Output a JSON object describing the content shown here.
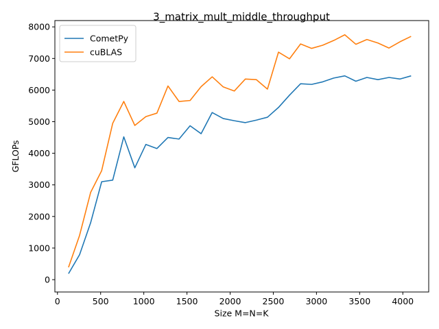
{
  "chart_data": {
    "type": "line",
    "title": "3_matrix_mult_middle_throughput",
    "xlabel": "Size M=N=K",
    "ylabel": "GFLOPs",
    "xlim": [
      -30,
      4300
    ],
    "ylim": [
      -390,
      8200
    ],
    "xticks": [
      0,
      500,
      1000,
      1500,
      2000,
      2500,
      3000,
      3500,
      4000
    ],
    "yticks": [
      0,
      1000,
      2000,
      3000,
      4000,
      5000,
      6000,
      7000,
      8000
    ],
    "grid": false,
    "legend_position": "top-left",
    "x": [
      128,
      256,
      384,
      512,
      640,
      768,
      896,
      1024,
      1152,
      1280,
      1408,
      1536,
      1664,
      1792,
      1920,
      2048,
      2176,
      2304,
      2432,
      2560,
      2688,
      2816,
      2944,
      3072,
      3200,
      3328,
      3456,
      3584,
      3712,
      3840,
      3968,
      4096
    ],
    "series": [
      {
        "name": "CometPy",
        "color": "#1f77b4",
        "values": [
          190,
          790,
          1800,
          3100,
          3150,
          4520,
          3540,
          4280,
          4150,
          4500,
          4450,
          4870,
          4620,
          5290,
          5100,
          5030,
          4970,
          5050,
          5140,
          5450,
          5840,
          6200,
          6180,
          6260,
          6380,
          6450,
          6280,
          6400,
          6330,
          6400,
          6350,
          6450
        ]
      },
      {
        "name": "cuBLAS",
        "color": "#ff7f0e",
        "values": [
          390,
          1400,
          2760,
          3450,
          4950,
          5640,
          4880,
          5160,
          5270,
          6130,
          5640,
          5670,
          6110,
          6420,
          6100,
          5970,
          6350,
          6330,
          6030,
          7200,
          6990,
          7460,
          7320,
          7420,
          7570,
          7750,
          7450,
          7600,
          7490,
          7330,
          7530,
          7700
        ]
      }
    ]
  }
}
